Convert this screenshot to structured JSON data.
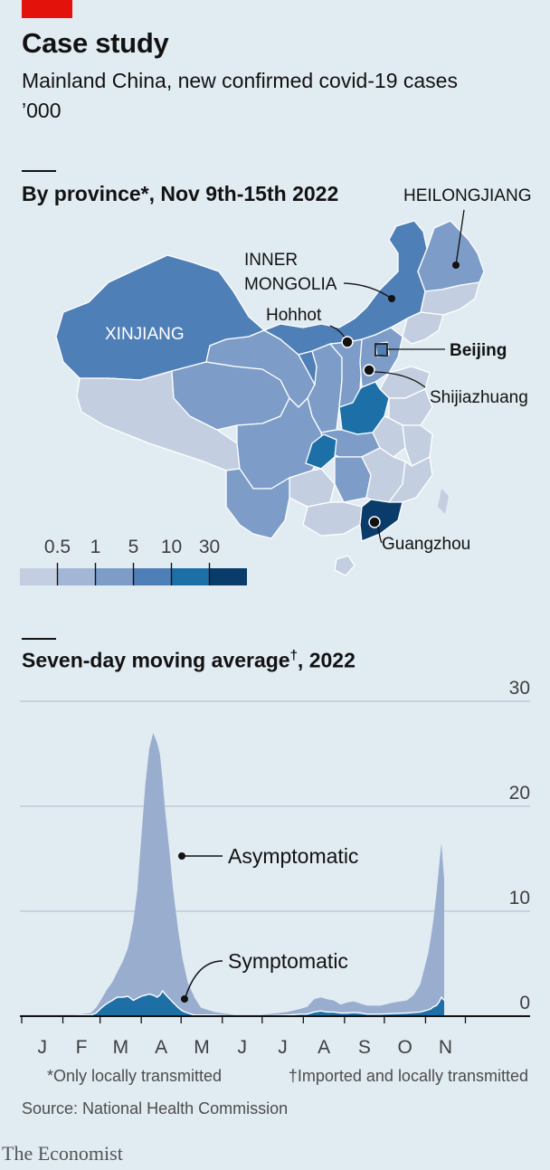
{
  "header": {
    "title": "Case study",
    "subtitle": "Mainland China, new confirmed covid-19 cases",
    "unit": "’000"
  },
  "map_section": {
    "title": "By province*, Nov 9th-15th 2022",
    "labels": {
      "heilongjiang": "HEILONGJIANG",
      "inner_mongolia_line1": "INNER",
      "inner_mongolia_line2": "MONGOLIA",
      "xinjiang": "XINJIANG",
      "hohhot": "Hohhot",
      "beijing": "Beijing",
      "shijiazhuang": "Shijiazhuang",
      "guangzhou": "Guangzhou"
    },
    "legend": {
      "thresholds": [
        "0.5",
        "1",
        "5",
        "10",
        "30"
      ],
      "colors": [
        "#c3cfe0",
        "#a2b7d5",
        "#7d9dc8",
        "#4f7fb7",
        "#1d6fa8",
        "#0a3c6b"
      ]
    }
  },
  "chart_section": {
    "title_main": "Seven-day moving average",
    "title_dagger": "†",
    "title_year": ", 2022"
  },
  "chart_data": {
    "type": "area",
    "title": "Seven-day moving average†, 2022",
    "ylim": [
      0,
      30
    ],
    "yticks": [
      0,
      10,
      20,
      30
    ],
    "xticks": [
      "J",
      "F",
      "M",
      "A",
      "M",
      "J",
      "J",
      "A",
      "S",
      "O",
      "N"
    ],
    "x_unit": "days since Jan 1st 2022",
    "x": [
      0,
      30,
      45,
      52,
      56,
      60,
      64,
      68,
      72,
      76,
      80,
      84,
      87,
      90,
      93,
      96,
      99,
      102,
      104,
      106,
      108,
      111,
      114,
      118,
      121,
      125,
      130,
      135,
      145,
      160,
      180,
      200,
      210,
      215,
      220,
      225,
      230,
      235,
      240,
      245,
      250,
      255,
      260,
      270,
      280,
      290,
      295,
      300,
      303,
      306,
      308,
      310,
      312,
      314,
      316,
      318
    ],
    "series": [
      {
        "name": "Asymptomatic",
        "color": "#99adcf",
        "values": [
          0.1,
          0.1,
          0.2,
          0.3,
          0.8,
          1.6,
          2.5,
          3.2,
          4.2,
          5.2,
          6.5,
          9,
          12,
          17,
          22,
          25.5,
          27,
          26,
          25,
          22.5,
          19.5,
          16,
          12,
          8,
          5.5,
          3.2,
          1.8,
          0.8,
          0.4,
          0.1,
          0.1,
          0.4,
          0.7,
          0.9,
          1.6,
          1.8,
          1.6,
          1.5,
          1.1,
          1.3,
          1.4,
          1.2,
          1.0,
          1.0,
          1.3,
          1.5,
          2.0,
          3.0,
          4.5,
          6.0,
          7.5,
          9.2,
          11.5,
          14.0,
          16.5,
          13.0
        ]
      },
      {
        "name": "Symptomatic",
        "color": "#1f6fa7",
        "values": [
          0.0,
          0.0,
          0.1,
          0.1,
          0.3,
          0.8,
          1.2,
          1.5,
          1.8,
          1.8,
          1.9,
          1.5,
          1.7,
          1.9,
          2.0,
          2.1,
          2.0,
          1.8,
          2.0,
          2.4,
          2.1,
          1.7,
          1.3,
          0.8,
          0.5,
          0.3,
          0.1,
          0.1,
          0.1,
          0.0,
          0.0,
          0.1,
          0.2,
          0.2,
          0.4,
          0.5,
          0.4,
          0.4,
          0.3,
          0.3,
          0.35,
          0.3,
          0.2,
          0.2,
          0.25,
          0.3,
          0.35,
          0.4,
          0.5,
          0.6,
          0.7,
          0.9,
          1.0,
          1.3,
          1.8,
          1.5
        ]
      }
    ],
    "annotations": [
      "Asymptomatic",
      "Symptomatic"
    ]
  },
  "footnotes": {
    "star": "*Only locally transmitted",
    "dagger": "†Imported and locally transmitted"
  },
  "source": "Source: National Health Commission",
  "brand": "The Economist"
}
